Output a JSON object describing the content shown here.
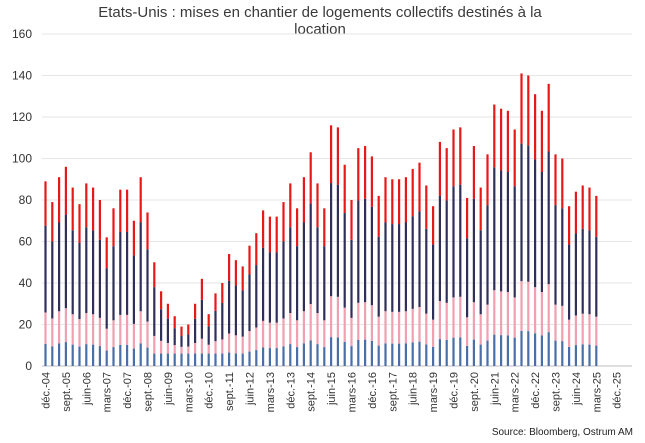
{
  "chart_data": {
    "type": "bar",
    "stacked": true,
    "title_line1": "Etats-Unis : mises en chantier de logements collectifs destinés à la",
    "title_line2": "location",
    "source": "Source: Bloomberg, Ostrum AM",
    "ylim": [
      0,
      160
    ],
    "yticks": [
      0,
      20,
      40,
      60,
      80,
      100,
      120,
      140,
      160
    ],
    "xtick_labels": [
      "déc.-04",
      "sept.-05",
      "juin-06",
      "mars-07",
      "déc.-07",
      "sept.-08",
      "juin-09",
      "mars-10",
      "déc.-10",
      "sept.-11",
      "juin-12",
      "mars-13",
      "déc.-13",
      "sept.-14",
      "juin-15",
      "mars-16",
      "déc.-16",
      "sept.-17",
      "juin-18",
      "mars-19",
      "déc.-19",
      "sept.-20",
      "juin-21",
      "mars-22",
      "déc.-22",
      "sept.-23",
      "juin-24",
      "mars-25",
      "déc.-25"
    ],
    "series_colors": [
      "#4a6fa8",
      "#f0a0b0",
      "#2f2f5a",
      "#e81818"
    ],
    "bar_totals": [
      89,
      79,
      91,
      96,
      86,
      78,
      88,
      86,
      80,
      62,
      76,
      85,
      85,
      70,
      91,
      74,
      50,
      36,
      30,
      24,
      19,
      20,
      30,
      42,
      25,
      35,
      40,
      54,
      51,
      48,
      58,
      64,
      75,
      72,
      72,
      79,
      88,
      76,
      91,
      103,
      88,
      76,
      116,
      115,
      97,
      80,
      105,
      106,
      101,
      82,
      91,
      90,
      90,
      91,
      95,
      98,
      87,
      77,
      108,
      105,
      114,
      115,
      81,
      106,
      86,
      102,
      126,
      124,
      123,
      114,
      141,
      140,
      131,
      123,
      136,
      102,
      100,
      77,
      84,
      87,
      86,
      82
    ]
  }
}
